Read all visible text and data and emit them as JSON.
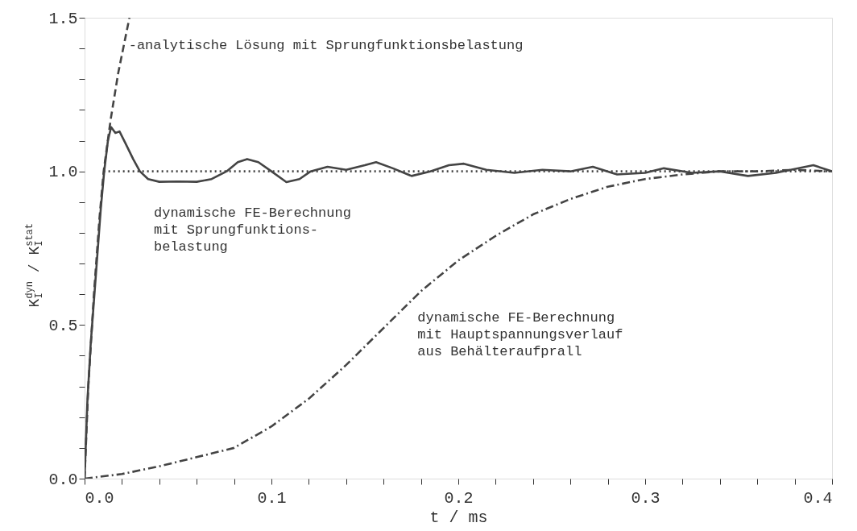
{
  "chart_data": {
    "type": "line",
    "xlabel": "t / ms",
    "ylabel": "K$_{I}$$^{dyn}$ / K$_{I}$$^{stat}$",
    "xlim": [
      0,
      0.4
    ],
    "ylim": [
      0,
      1.5
    ],
    "xticks": [
      {
        "value": 0,
        "label": "0.0"
      },
      {
        "value": 0.02,
        "label": null
      },
      {
        "value": 0.04,
        "label": null
      },
      {
        "value": 0.06,
        "label": null
      },
      {
        "value": 0.08,
        "label": null
      },
      0.1,
      {
        "value": 0.12,
        "label": null
      },
      {
        "value": 0.14,
        "label": null
      },
      {
        "value": 0.16,
        "label": null
      },
      {
        "value": 0.18,
        "label": null
      },
      0.2,
      {
        "value": 0.22,
        "label": null
      },
      {
        "value": 0.24,
        "label": null
      },
      {
        "value": 0.26,
        "label": null
      },
      {
        "value": 0.28,
        "label": null
      },
      0.3,
      {
        "value": 0.32,
        "label": null
      },
      {
        "value": 0.34,
        "label": null
      },
      {
        "value": 0.36,
        "label": null
      },
      {
        "value": 0.38,
        "label": null
      },
      0.4
    ],
    "yticks": [
      {
        "value": 0,
        "label": "0.0"
      },
      {
        "value": 0.1,
        "label": null
      },
      {
        "value": 0.2,
        "label": null
      },
      {
        "value": 0.3,
        "label": null
      },
      {
        "value": 0.4,
        "label": null
      },
      0.5,
      {
        "value": 0.6,
        "label": null
      },
      {
        "value": 0.7,
        "label": null
      },
      {
        "value": 0.8,
        "label": null
      },
      {
        "value": 0.9,
        "label": null
      },
      {
        "value": 1,
        "label": "1.0"
      },
      {
        "value": 1.1,
        "label": null
      },
      {
        "value": 1.2,
        "label": null
      },
      {
        "value": 1.3,
        "label": null
      },
      {
        "value": 1.4,
        "label": null
      },
      1.5
    ],
    "grid": false,
    "marker": "none",
    "series": [
      {
        "color": "#444444",
        "line_style": "dotted",
        "x": [
          0.0102,
          0.4
        ],
        "values": [
          1.0,
          1.0
        ]
      },
      {
        "color": "#444444",
        "line_style": "dashed",
        "x": [
          0,
          0.002,
          0.005,
          0.008,
          0.0102,
          0.014,
          0.018,
          0.024
        ],
        "values": [
          0,
          0.3,
          0.6,
          0.85,
          1.0,
          1.17,
          1.32,
          1.5
        ]
      },
      {
        "color": "#444444",
        "line_style": "solid",
        "x": [
          0,
          0.0015,
          0.0033,
          0.006,
          0.0087,
          0.0105,
          0.0125,
          0.0142,
          0.0165,
          0.0187,
          0.022,
          0.026,
          0.0296,
          0.034,
          0.04,
          0.05,
          0.06,
          0.068,
          0.076,
          0.082,
          0.087,
          0.093,
          0.1,
          0.108,
          0.115,
          0.121,
          0.13,
          0.14,
          0.15,
          0.156,
          0.165,
          0.175,
          0.185,
          0.195,
          0.203,
          0.215,
          0.23,
          0.245,
          0.26,
          0.272,
          0.285,
          0.3,
          0.31,
          0.325,
          0.34,
          0.355,
          0.37,
          0.39,
          0.4
        ],
        "values": [
          0,
          0.25,
          0.44,
          0.66,
          0.88,
          1.0,
          1.1,
          1.144,
          1.125,
          1.13,
          1.09,
          1.04,
          1.0,
          0.975,
          0.966,
          0.967,
          0.966,
          0.975,
          1.0,
          1.03,
          1.04,
          1.03,
          1.0,
          0.965,
          0.975,
          1.0,
          1.015,
          1.005,
          1.02,
          1.03,
          1.01,
          0.985,
          1.0,
          1.02,
          1.025,
          1.005,
          0.995,
          1.005,
          1.0,
          1.015,
          0.99,
          0.995,
          1.01,
          0.995,
          1.0,
          0.985,
          0.995,
          1.02,
          1.0
        ]
      },
      {
        "color": "#444444",
        "line_style": "dashdot",
        "x": [
          0,
          0.02,
          0.04,
          0.06,
          0.08,
          0.1,
          0.12,
          0.14,
          0.16,
          0.18,
          0.2,
          0.22,
          0.24,
          0.26,
          0.28,
          0.3,
          0.32,
          0.34,
          0.36,
          0.38,
          0.4
        ],
        "values": [
          0,
          0.015,
          0.04,
          0.07,
          0.1,
          0.17,
          0.26,
          0.37,
          0.49,
          0.61,
          0.71,
          0.79,
          0.86,
          0.91,
          0.95,
          0.975,
          0.99,
          1.0,
          1.0,
          1.005,
          1.0
        ]
      }
    ],
    "annotations": [
      {
        "text": "-analytische Lösung mit Sprungfunktionsbelastung",
        "x": 0.021,
        "y": 1.4
      },
      {
        "text": "dynamische FE-Berechnung\nmit Sprungfunktions-\nbelastung",
        "x": 0.05,
        "y": 0.966
      },
      {
        "text": "dynamische FE-Berechnung\nmit Hauptspannungsverlauf\naus Behälteraufprall",
        "x": 0.176,
        "y": 0.61
      }
    ]
  }
}
